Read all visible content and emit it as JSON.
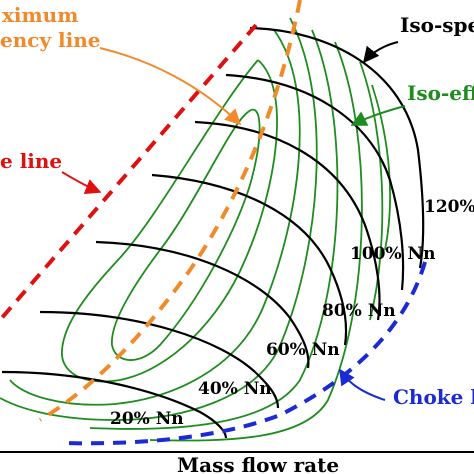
{
  "labels": {
    "max_efficiency": [
      "ximum",
      "ency line"
    ],
    "surge_line": "e line",
    "iso_speed": "Iso-spe",
    "iso_efficiency": "Iso-eff",
    "choke_line": "Choke l",
    "x_axis": "Mass flow rate"
  },
  "speed_labels": [
    "120%",
    "100% Nn",
    "80% Nn",
    "60% Nn",
    "40% Nn",
    "20% Nn"
  ],
  "colors": {
    "speed_lines": "#000000",
    "efficiency_contours": "#1e8c1e",
    "max_efficiency_line": "#f08a2a",
    "surge_line": "#e01010",
    "choke_line": "#1a2bd6"
  }
}
